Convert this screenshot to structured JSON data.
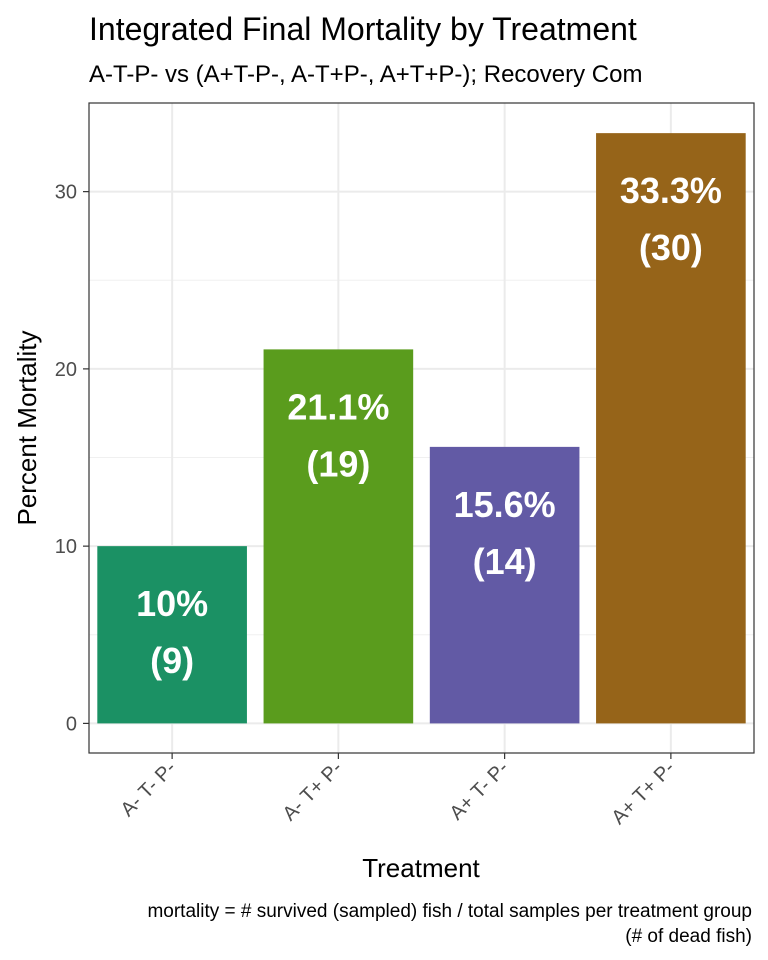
{
  "chart_data": {
    "type": "bar",
    "title": "Integrated Final Mortality by Treatment",
    "subtitle": "A-T-P- vs (A+T-P-, A-T+P-, A+T+P-); Recovery Com",
    "xlabel": "Treatment",
    "ylabel": "Percent Mortality",
    "categories": [
      "A- T- P-",
      "A- T+ P-",
      "A+ T- P-",
      "A+ T+ P-"
    ],
    "values": [
      10,
      21.1,
      15.6,
      33.3
    ],
    "percent_labels": [
      "10%",
      "21.1%",
      "15.6%",
      "33.3%"
    ],
    "count_labels": [
      "(9)",
      "(19)",
      "(14)",
      "(30)"
    ],
    "colors": [
      "#1b9164",
      "#5a9c1d",
      "#625aa5",
      "#966419"
    ],
    "ylim": [
      -1.67,
      35
    ],
    "yticks": [
      0,
      10,
      20,
      30
    ],
    "grid": true,
    "legend": "none",
    "caption_lines": [
      "mortality = # survived (sampled) fish / total samples per treatment group",
      "(# of dead fish)"
    ]
  }
}
